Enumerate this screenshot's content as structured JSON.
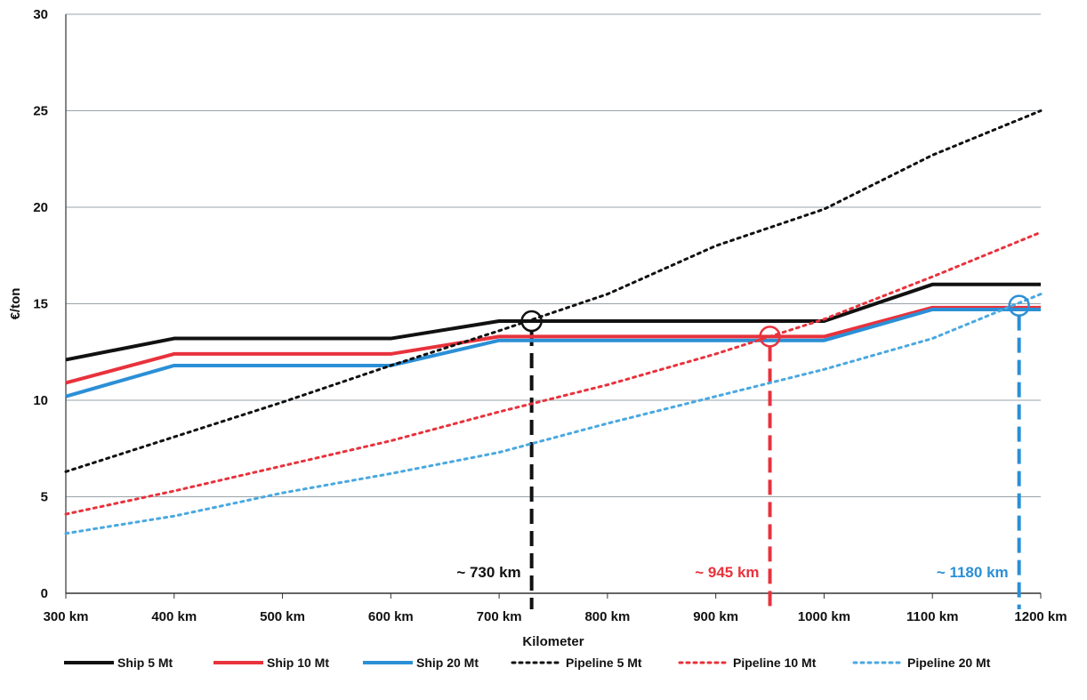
{
  "chart_data": {
    "type": "line",
    "xlabel": "Kilometer",
    "ylabel": "€/ton",
    "xlim": [
      300,
      1200
    ],
    "ylim": [
      0,
      30
    ],
    "x_ticks": [
      300,
      400,
      500,
      600,
      700,
      800,
      900,
      1000,
      1100,
      1200
    ],
    "x_tick_labels": [
      "300 km",
      "400 km",
      "500 km",
      "600 km",
      "700 km",
      "800 km",
      "900 km",
      "1000 km",
      "1100 km",
      "1200 km"
    ],
    "y_ticks": [
      0,
      5,
      10,
      15,
      20,
      25,
      30
    ],
    "y_tick_labels": [
      "0",
      "5",
      "10",
      "15",
      "20",
      "25",
      "30"
    ],
    "grid": "horizontal",
    "legend_position": "bottom",
    "series": [
      {
        "name": "Ship 5 Mt",
        "style": "solid",
        "color": "#111111",
        "x": [
          300,
          400,
          600,
          700,
          1000,
          1100,
          1200
        ],
        "y": [
          12.1,
          13.2,
          13.2,
          14.1,
          14.1,
          16.0,
          16.0
        ]
      },
      {
        "name": "Ship 10 Mt",
        "style": "solid",
        "color": "#e8323c",
        "x": [
          300,
          400,
          600,
          700,
          1000,
          1100,
          1200
        ],
        "y": [
          10.9,
          12.4,
          12.4,
          13.3,
          13.3,
          14.8,
          14.8
        ]
      },
      {
        "name": "Ship 20 Mt",
        "style": "solid",
        "color": "#2b8fd6",
        "x": [
          300,
          400,
          600,
          700,
          1000,
          1100,
          1200
        ],
        "y": [
          10.2,
          11.8,
          11.8,
          13.1,
          13.1,
          14.7,
          14.7
        ]
      },
      {
        "name": "Pipeline 5 Mt",
        "style": "dotted",
        "color": "#111111",
        "x": [
          300,
          400,
          500,
          600,
          700,
          800,
          900,
          1000,
          1100,
          1200
        ],
        "y": [
          6.3,
          8.1,
          9.9,
          11.8,
          13.6,
          15.5,
          18.0,
          19.9,
          22.7,
          25.0
        ]
      },
      {
        "name": "Pipeline 10 Mt",
        "style": "dotted",
        "color": "#e8323c",
        "x": [
          300,
          400,
          500,
          600,
          700,
          800,
          900,
          1000,
          1100,
          1200
        ],
        "y": [
          4.1,
          5.3,
          6.6,
          7.9,
          9.4,
          10.8,
          12.4,
          14.2,
          16.4,
          18.7
        ]
      },
      {
        "name": "Pipeline 20 Mt",
        "style": "dotted",
        "color": "#4aa8e0",
        "x": [
          300,
          400,
          500,
          600,
          700,
          800,
          900,
          1000,
          1100,
          1200
        ],
        "y": [
          3.1,
          4.0,
          5.2,
          6.2,
          7.3,
          8.8,
          10.2,
          11.6,
          13.2,
          15.5
        ]
      }
    ],
    "annotations": [
      {
        "label": "~ 730 km",
        "x": 730,
        "y": 14.1,
        "color": "#111111"
      },
      {
        "label": "~ 945 km",
        "x": 950,
        "y": 13.3,
        "color": "#e8323c"
      },
      {
        "label": "~ 1180 km",
        "x": 1180,
        "y": 14.9,
        "color": "#2b8fd6"
      }
    ]
  }
}
